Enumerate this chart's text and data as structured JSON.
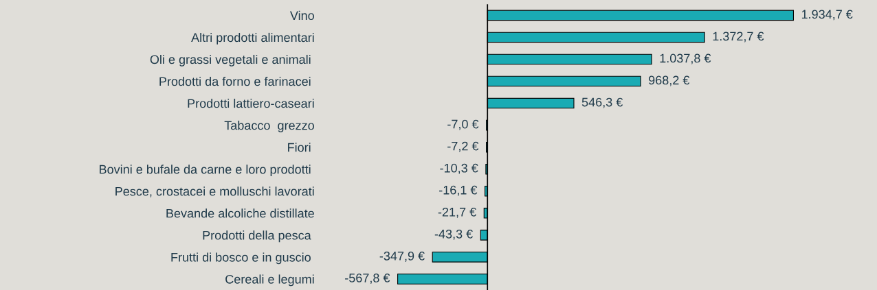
{
  "chart_data": {
    "type": "bar",
    "orientation": "horizontal",
    "categories": [
      "Vino",
      "Altri prodotti alimentari",
      "Oli e grassi vegetali e animali ",
      "Prodotti da forno e farinacei ",
      "Prodotti lattiero-caseari",
      "Tabacco  grezzo",
      "Fiori ",
      "Bovini e bufale da carne e loro prodotti ",
      "Pesce, crostacei e molluschi lavorati",
      "Bevande alcoliche distillate",
      "Prodotti della pesca ",
      "Frutti di bosco e in guscio ",
      "Cereali e legumi"
    ],
    "values": [
      1934.7,
      1372.7,
      1037.8,
      968.2,
      546.3,
      -7.0,
      -7.2,
      -10.3,
      -16.1,
      -21.7,
      -43.3,
      -347.9,
      -567.8
    ],
    "value_labels": [
      "1.934,7 €",
      "1.372,7 €",
      "1.037,8 €",
      "968,2 €",
      "546,3 €",
      "-7,0 €",
      "-7,2 €",
      "-10,3 €",
      "-16,1 €",
      "-21,7 €",
      "-43,3 €",
      "-347,9 €",
      "-567,8 €"
    ],
    "color": "#1aabb4",
    "grid": false,
    "legend": false
  }
}
